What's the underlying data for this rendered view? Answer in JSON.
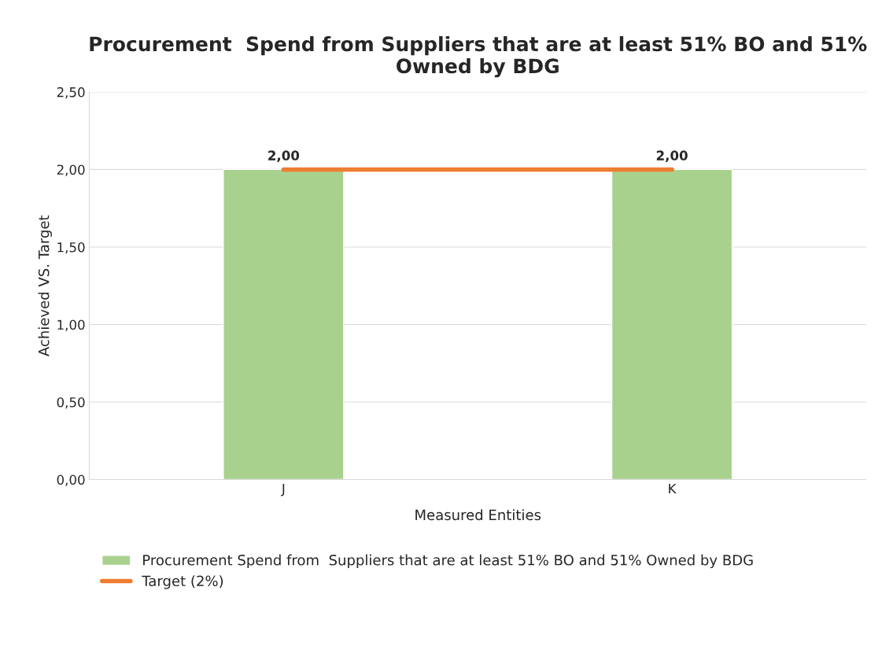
{
  "chart_data": {
    "type": "bar",
    "title": "Procurement  Spend from Suppliers that are at least 51% BO and 51% Owned by BDG",
    "xlabel": "Measured Entities",
    "ylabel": "Achieved VS. Target",
    "categories": [
      "J",
      "K"
    ],
    "series": [
      {
        "name": "Procurement Spend from  Suppliers that are at least 51% BO and 51% Owned by BDG",
        "color": "#a9d18e",
        "values": [
          2.0,
          2.0
        ],
        "value_labels": [
          "2,00",
          "2,00"
        ]
      },
      {
        "name": "Target (2%)",
        "type": "line",
        "color": "#ed7d31",
        "values": [
          2.0,
          2.0
        ]
      }
    ],
    "ylim": [
      0,
      2.5
    ],
    "yticks": [
      {
        "value": 0,
        "label": "0,00"
      },
      {
        "value": 0.5,
        "label": "0,50"
      },
      {
        "value": 1.0,
        "label": "1,00"
      },
      {
        "value": 1.5,
        "label": "1,50"
      },
      {
        "value": 2.0,
        "label": "2,00"
      },
      {
        "value": 2.5,
        "label": "2,50"
      }
    ],
    "grid": "y",
    "legend": "bottom"
  }
}
